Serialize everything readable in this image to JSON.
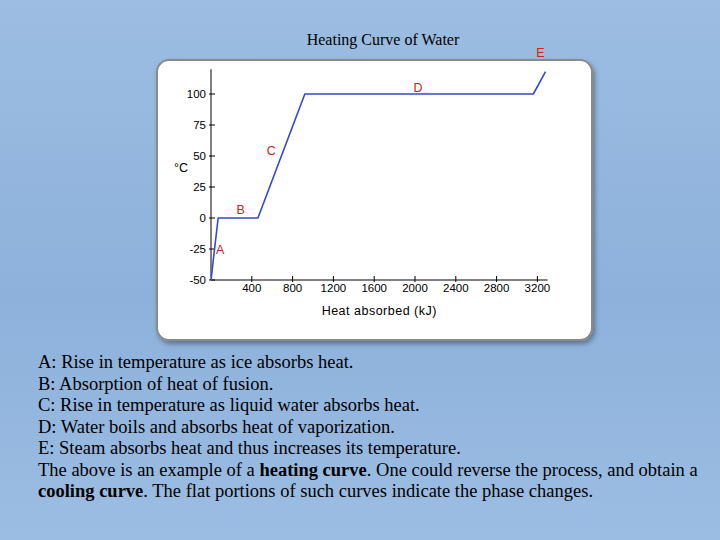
{
  "chart_data": {
    "type": "line",
    "title": "Heating Curve of Water",
    "x_label": "Heat absorbed (kJ)",
    "y_label": "°C",
    "x": [
      0,
      70,
      460,
      920,
      3160,
      3280
    ],
    "series": [
      {
        "color": "#3548d4",
        "values": [
          -50,
          0,
          0,
          100,
          100,
          118
        ]
      }
    ],
    "xlim": [
      0,
      3300
    ],
    "ylim": [
      -50,
      120
    ],
    "xticks": [
      400,
      800,
      1200,
      1600,
      2000,
      2400,
      2800,
      3200
    ],
    "yticks": [
      -50,
      -25,
      0,
      25,
      50,
      75,
      100
    ],
    "grid": false,
    "annotations": [
      {
        "text": "A",
        "x": 90,
        "y": -25
      },
      {
        "text": "B",
        "x": 290,
        "y": 7
      },
      {
        "text": "C",
        "x": 590,
        "y": 55
      },
      {
        "text": "D",
        "x": 2030,
        "y": 106
      },
      {
        "text": "E",
        "x": 3230,
        "y": 134
      }
    ]
  },
  "caption": {
    "lines": [
      "A: Rise in temperature as ice absorbs heat.",
      "B: Absorption of heat of fusion.",
      "C: Rise in temperature as liquid water absorbs heat.",
      "D: Water boils and absorbs heat of vaporization.",
      "E: Steam absorbs heat and thus increases its temperature."
    ],
    "paragraph": [
      {
        "text": "The above is an example of a ",
        "bold": false
      },
      {
        "text": "heating curve",
        "bold": true
      },
      {
        "text": ". One could reverse the process, and obtain a ",
        "bold": false
      },
      {
        "text": "cooling curve",
        "bold": true
      },
      {
        "text": ". The flat portions of such curves indicate the phase changes.",
        "bold": false
      }
    ]
  }
}
